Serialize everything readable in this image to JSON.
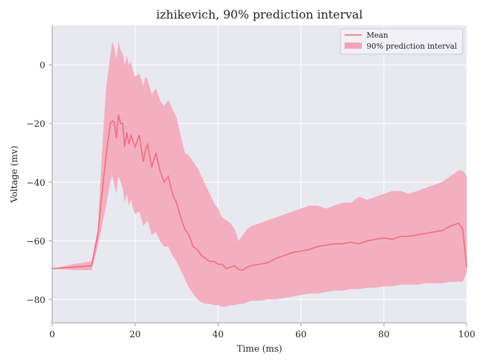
{
  "chart_data": {
    "type": "area",
    "title": "izhikevich, 90% prediction interval",
    "xlabel": "Time (ms)",
    "ylabel": "Voltage (mv)",
    "xlim": [
      0,
      100
    ],
    "ylim": [
      -88,
      13.5
    ],
    "xticks": [
      0,
      20,
      40,
      60,
      80,
      100
    ],
    "yticks": [
      0,
      -20,
      -40,
      -60,
      -80
    ],
    "xtick_labels": [
      "0",
      "20",
      "40",
      "60",
      "80",
      "100"
    ],
    "ytick_labels": [
      "0",
      "−20",
      "−40",
      "−60",
      "−80"
    ],
    "grid": true,
    "legend_position": "top-right",
    "colors": {
      "mean": "#f46e85",
      "interval": "#f4a4b6",
      "plot_bg": "#e8e8f0",
      "grid": "#ffffff"
    },
    "series": [
      {
        "name": "Mean",
        "kind": "line",
        "x": [
          0,
          5,
          9.5,
          11,
          12,
          13,
          14,
          14.5,
          15,
          15.5,
          16,
          16.5,
          17,
          17.5,
          18,
          18.5,
          19,
          19.5,
          20,
          21,
          22,
          22.5,
          23,
          24,
          25,
          26,
          27,
          28,
          29,
          30,
          31,
          32,
          33,
          34,
          35,
          36,
          37,
          38,
          39,
          40,
          41,
          42,
          43,
          44,
          45,
          46,
          47,
          48,
          50,
          52,
          54,
          56,
          58,
          60,
          62,
          64,
          66,
          68,
          70,
          72,
          74,
          76,
          78,
          80,
          82,
          84,
          86,
          88,
          90,
          92,
          94,
          96,
          98,
          99,
          100
        ],
        "y": [
          -69.5,
          -69,
          -68.5,
          -58,
          -44,
          -31,
          -20,
          -19,
          -19.5,
          -25,
          -17,
          -20,
          -20,
          -28,
          -23,
          -27,
          -24,
          -26,
          -28,
          -24,
          -33,
          -29,
          -27,
          -35,
          -30,
          -36,
          -40,
          -38,
          -44,
          -47,
          -52,
          -56,
          -58,
          -62,
          -63,
          -65,
          -66,
          -67,
          -67,
          -68,
          -68,
          -69.5,
          -69,
          -68.5,
          -69.8,
          -70,
          -69,
          -68.5,
          -68,
          -67.5,
          -66,
          -65,
          -64,
          -63.5,
          -63,
          -62,
          -61.5,
          -61,
          -61,
          -60.5,
          -61,
          -60,
          -59.5,
          -59,
          -59.5,
          -58.5,
          -58.5,
          -58,
          -57.5,
          -57,
          -56.5,
          -55,
          -54,
          -56,
          -69
        ]
      },
      {
        "name": "90% prediction interval",
        "kind": "band",
        "x": [
          0,
          5,
          9.5,
          11,
          12,
          13,
          14,
          14.5,
          15,
          15.5,
          16,
          16.5,
          17,
          17.5,
          18,
          18.5,
          19,
          19.5,
          20,
          21,
          22,
          22.5,
          23,
          24,
          25,
          26,
          27,
          28,
          29,
          30,
          31,
          32,
          33,
          34,
          35,
          36,
          37,
          38,
          39,
          40,
          41,
          42,
          43,
          44,
          45,
          46,
          47,
          48,
          50,
          52,
          54,
          56,
          58,
          60,
          62,
          64,
          66,
          68,
          70,
          72,
          74,
          76,
          78,
          80,
          82,
          84,
          86,
          88,
          90,
          92,
          94,
          96,
          98,
          99,
          100
        ],
        "upper": [
          -69.5,
          -68,
          -67,
          -56,
          -30,
          -8,
          3,
          8,
          6,
          2,
          8,
          5,
          4,
          0,
          3,
          0,
          1,
          -2,
          -4,
          -3,
          -7,
          -4,
          -5,
          -10,
          -8,
          -12,
          -14,
          -12,
          -15,
          -18,
          -24,
          -30,
          -31,
          -33,
          -35,
          -38,
          -41,
          -44,
          -47,
          -49,
          -52,
          -53,
          -54,
          -56,
          -60,
          -58,
          -56,
          -55,
          -54,
          -53,
          -52,
          -51,
          -50,
          -49,
          -48,
          -48,
          -49,
          -48,
          -47,
          -47,
          -45,
          -46,
          -45,
          -44,
          -43,
          -43,
          -44,
          -43,
          -42,
          -41,
          -40,
          -38,
          -36,
          -36,
          -38
        ],
        "lower": [
          -69.5,
          -70,
          -70,
          -62,
          -55,
          -48,
          -40,
          -38,
          -41,
          -44,
          -38,
          -40,
          -42,
          -47,
          -44,
          -48,
          -46,
          -49,
          -51,
          -50,
          -55,
          -54,
          -53,
          -58,
          -57,
          -60,
          -62,
          -62,
          -65,
          -67,
          -70,
          -73,
          -76,
          -78,
          -80,
          -81,
          -81.5,
          -81.5,
          -82,
          -82,
          -82.5,
          -82.5,
          -82,
          -82,
          -81.5,
          -81.5,
          -81,
          -80.5,
          -80.5,
          -80,
          -80,
          -79.5,
          -79,
          -78.5,
          -78,
          -78,
          -77.5,
          -77,
          -77,
          -76.5,
          -76.5,
          -76,
          -76,
          -75.5,
          -75.5,
          -75,
          -75,
          -75,
          -74.5,
          -74.5,
          -74.5,
          -74,
          -74,
          -74,
          -71
        ]
      }
    ]
  }
}
